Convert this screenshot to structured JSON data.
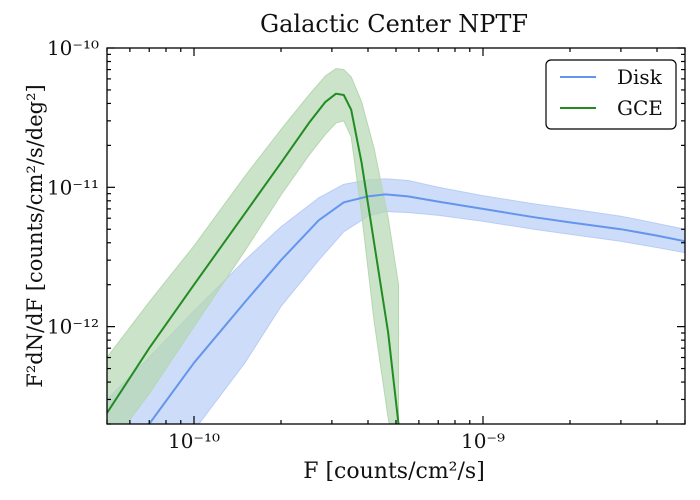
{
  "chart_data": {
    "type": "line",
    "title": "Galactic Center NPTF",
    "xlabel": "F [counts/cm²/s]",
    "ylabel": "F²dN/dF [counts/cm²/s/deg²]",
    "x_scale": "log",
    "y_scale": "log",
    "xlim": [
      5e-11,
      5e-09
    ],
    "ylim": [
      2e-13,
      1e-10
    ],
    "grid": false,
    "legend_position": "top-right",
    "x_ticks": [
      {
        "value": 1e-10,
        "label": "10⁻¹⁰"
      },
      {
        "value": 1e-09,
        "label": "10⁻⁹"
      }
    ],
    "y_ticks": [
      {
        "value": 1e-12,
        "label": "10⁻¹²"
      },
      {
        "value": 1e-11,
        "label": "10⁻¹¹"
      },
      {
        "value": 1e-10,
        "label": "10⁻¹⁰"
      }
    ],
    "series": [
      {
        "name": "Disk",
        "color": "#6495ed",
        "band_color": "#b8cdf6",
        "x": [
          5e-11,
          7e-11,
          1e-10,
          1.5e-10,
          2e-10,
          2.7e-10,
          3.3e-10,
          4e-10,
          4.6e-10,
          5.5e-10,
          7e-10,
          1e-09,
          1.5e-09,
          2e-09,
          3e-09,
          4e-09,
          5e-09
        ],
        "y": [
          1e-13,
          2e-13,
          5.5e-13,
          1.5e-12,
          3e-12,
          5.8e-12,
          7.8e-12,
          8.6e-12,
          8.9e-12,
          8.6e-12,
          7.9e-12,
          7e-12,
          6.1e-12,
          5.6e-12,
          5e-12,
          4.5e-12,
          4.1e-12
        ],
        "lower": [
          6e-14,
          1e-13,
          1.8e-13,
          5.5e-13,
          1.4e-12,
          3e-12,
          4.8e-12,
          6.2e-12,
          6.7e-12,
          6.6e-12,
          6.3e-12,
          5.7e-12,
          5e-12,
          4.6e-12,
          4.1e-12,
          3.7e-12,
          3.4e-12
        ],
        "upper": [
          3e-13,
          6e-13,
          1.3e-12,
          3e-12,
          5.2e-12,
          8.4e-12,
          1.05e-11,
          1.13e-11,
          1.15e-11,
          1.12e-11,
          1e-11,
          8.7e-12,
          7.6e-12,
          7e-12,
          6.2e-12,
          5.5e-12,
          5e-12
        ]
      },
      {
        "name": "GCE",
        "color": "#228b22",
        "band_color": "#b5d7b0",
        "x": [
          5e-11,
          7e-11,
          1e-10,
          1.5e-10,
          2e-10,
          2.5e-10,
          2.85e-10,
          3.1e-10,
          3.3e-10,
          3.5e-10,
          3.8e-10,
          4.2e-10,
          4.7e-10,
          5.1e-10
        ],
        "y": [
          2.4e-13,
          7e-13,
          2e-12,
          6.5e-12,
          1.5e-11,
          2.9e-11,
          4.1e-11,
          4.7e-11,
          4.6e-11,
          3.6e-11,
          1.5e-11,
          4e-12,
          9e-13,
          2e-13
        ],
        "lower": [
          1.3e-13,
          3.3e-13,
          1e-12,
          3.5e-12,
          8.8e-12,
          1.7e-11,
          2.4e-11,
          2.9e-11,
          3e-11,
          2.3e-11,
          6.5e-12,
          1.1e-12,
          2.2e-13,
          1e-13
        ],
        "upper": [
          6e-13,
          1.5e-12,
          3.8e-12,
          1.2e-11,
          2.6e-11,
          4.6e-11,
          6.3e-11,
          7.1e-11,
          7e-11,
          6.2e-11,
          4.1e-11,
          1.9e-11,
          6e-12,
          2e-12
        ]
      }
    ],
    "legend": [
      {
        "label": "Disk",
        "color": "#6495ed"
      },
      {
        "label": "GCE",
        "color": "#228b22"
      }
    ]
  }
}
